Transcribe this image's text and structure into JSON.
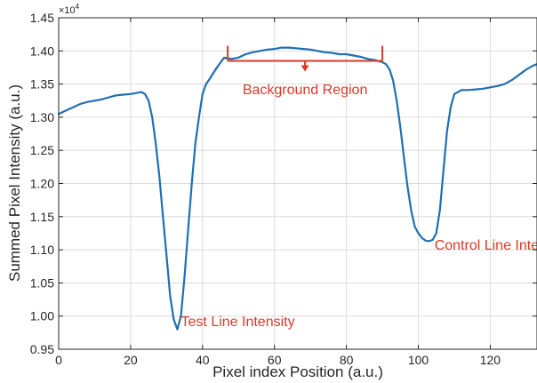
{
  "chart_data": {
    "type": "line",
    "xlabel": "Pixel index Position (a.u.)",
    "ylabel": "Summed Pixel Intensity (a.u.)",
    "xlim": [
      0,
      133
    ],
    "ylim": [
      0.95,
      1.45
    ],
    "y_exponent_label": "×10",
    "y_exponent_power": "4",
    "x_ticks": [
      "0",
      "20",
      "40",
      "60",
      "80",
      "100",
      "120"
    ],
    "y_ticks": [
      "0.95",
      "1.00",
      "1.05",
      "1.10",
      "1.15",
      "1.20",
      "1.25",
      "1.30",
      "1.35",
      "1.40",
      "1.45"
    ],
    "x_tick_values": [
      0,
      20,
      40,
      60,
      80,
      100,
      120
    ],
    "y_tick_values": [
      0.95,
      1.0,
      1.05,
      1.1,
      1.15,
      1.2,
      1.25,
      1.3,
      1.35,
      1.4,
      1.45
    ],
    "grid": true,
    "series_color": "#1f6fb4",
    "annotation_color": "#d93a2b",
    "series": [
      {
        "x": [
          0,
          2,
          4,
          6,
          8,
          10,
          12,
          14,
          16,
          18,
          20,
          22,
          23,
          24,
          25,
          26,
          27,
          28,
          29,
          30,
          31,
          32,
          33,
          34,
          35,
          36,
          37,
          38,
          39,
          40,
          41,
          42,
          44,
          46,
          48,
          50,
          52,
          54,
          56,
          58,
          60,
          62,
          64,
          66,
          68,
          70,
          72,
          74,
          76,
          78,
          80,
          82,
          84,
          86,
          88,
          90,
          91,
          92,
          93,
          94,
          95,
          96,
          97,
          98,
          99,
          100,
          101,
          102,
          103,
          104,
          105,
          106,
          107,
          108,
          109,
          110,
          112,
          114,
          116,
          118,
          120,
          122,
          124,
          126,
          128,
          130,
          132,
          133
        ],
        "y": [
          1.305,
          1.31,
          1.315,
          1.32,
          1.323,
          1.325,
          1.327,
          1.33,
          1.333,
          1.334,
          1.335,
          1.337,
          1.338,
          1.335,
          1.325,
          1.3,
          1.26,
          1.21,
          1.15,
          1.09,
          1.03,
          0.995,
          0.98,
          1.0,
          1.06,
          1.13,
          1.2,
          1.26,
          1.3,
          1.335,
          1.35,
          1.358,
          1.375,
          1.39,
          1.388,
          1.39,
          1.395,
          1.398,
          1.4,
          1.402,
          1.403,
          1.405,
          1.405,
          1.404,
          1.403,
          1.402,
          1.4,
          1.398,
          1.397,
          1.395,
          1.395,
          1.393,
          1.391,
          1.388,
          1.386,
          1.383,
          1.38,
          1.372,
          1.355,
          1.325,
          1.285,
          1.24,
          1.195,
          1.16,
          1.135,
          1.125,
          1.118,
          1.114,
          1.113,
          1.115,
          1.125,
          1.16,
          1.22,
          1.28,
          1.315,
          1.335,
          1.341,
          1.341,
          1.342,
          1.343,
          1.345,
          1.347,
          1.35,
          1.356,
          1.364,
          1.372,
          1.378,
          1.38
        ]
      }
    ],
    "bracket": {
      "x_start": 47,
      "x_end": 90,
      "y": 1.385
    },
    "annotations": [
      {
        "text": "Background Region",
        "x": 68.5,
        "y": 1.335
      },
      {
        "text": "Test Line Intensity",
        "x": 34,
        "y": 0.985
      },
      {
        "text": "Control Line Intensity",
        "x": 104.5,
        "y": 1.1
      }
    ]
  }
}
